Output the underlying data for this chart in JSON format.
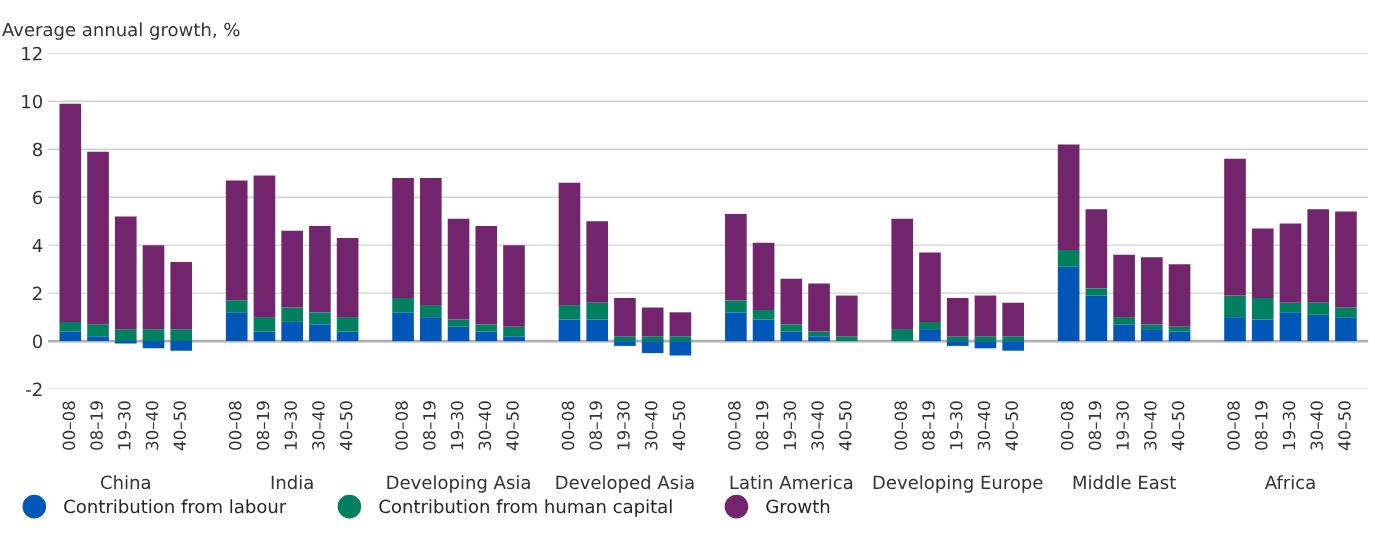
{
  "chart_data": {
    "type": "bar",
    "stacked": true,
    "ylabel": "Average annual growth, %",
    "categories": [
      "00–08",
      "08–19",
      "19–30",
      "30–40",
      "40–50",
      null,
      "00–08",
      "08–19",
      "19–30",
      "30–40",
      "40–50",
      null,
      "00–08",
      "08–19",
      "19–30",
      "30–40",
      "40–50",
      null,
      "00–08",
      "08–19",
      "19–30",
      "30–40",
      "40–50",
      null,
      "00–08",
      "08–19",
      "19–30",
      "30–40",
      "40–50",
      null,
      "00–08",
      "08–19",
      "19–30",
      "30–40",
      "40–50",
      null,
      "00–08",
      "08–19",
      "19–30",
      "30–40",
      "40–50",
      null,
      "00–08",
      "08–19",
      "19–30",
      "30–40",
      "40–50"
    ],
    "series": [
      {
        "name": "Contribution from labour",
        "color": "#0057b8",
        "values": [
          0.4,
          0.2,
          -0.1,
          -0.3,
          -0.4,
          null,
          1.2,
          0.4,
          0.8,
          0.7,
          0.4,
          null,
          1.2,
          1.0,
          0.6,
          0.4,
          0.2,
          null,
          0.9,
          0.9,
          -0.2,
          -0.5,
          -0.6,
          null,
          1.2,
          0.9,
          0.4,
          0.2,
          0.0,
          null,
          0.0,
          0.5,
          -0.2,
          -0.3,
          -0.4,
          null,
          3.1,
          1.9,
          0.7,
          0.5,
          0.4,
          null,
          1.0,
          0.9,
          1.2,
          1.1,
          1.0
        ]
      },
      {
        "name": "Contribution from human capital",
        "color": "#00805f",
        "values": [
          0.4,
          0.5,
          0.5,
          0.5,
          0.5,
          null,
          0.5,
          0.6,
          0.6,
          0.5,
          0.6,
          null,
          0.6,
          0.5,
          0.3,
          0.3,
          0.4,
          null,
          0.6,
          0.7,
          0.2,
          0.2,
          0.2,
          null,
          0.5,
          0.4,
          0.3,
          0.2,
          0.2,
          null,
          0.5,
          0.3,
          0.2,
          0.2,
          0.2,
          null,
          0.7,
          0.3,
          0.3,
          0.2,
          0.2,
          null,
          0.9,
          0.9,
          0.4,
          0.5,
          0.4
        ]
      },
      {
        "name": "Growth",
        "color": "#72246c",
        "values": [
          9.1,
          7.2,
          4.7,
          3.5,
          2.8,
          null,
          5.0,
          5.9,
          3.2,
          3.6,
          3.3,
          null,
          5.0,
          5.3,
          4.2,
          4.1,
          3.4,
          null,
          5.1,
          3.4,
          1.6,
          1.2,
          1.0,
          null,
          3.6,
          2.8,
          1.9,
          2.0,
          1.7,
          null,
          4.6,
          2.9,
          1.6,
          1.7,
          1.4,
          null,
          4.4,
          3.3,
          2.6,
          2.8,
          2.6,
          null,
          5.7,
          2.9,
          3.3,
          3.9,
          4.0
        ]
      }
    ],
    "annotations": [
      "China",
      "India",
      "Developing Asia",
      "Developed Asia",
      "Latin America",
      "Developing Europe",
      "Middle East",
      "Africa"
    ],
    "ylim": [
      -2,
      12
    ],
    "yticks": [
      -2,
      0,
      2,
      4,
      6,
      8,
      10,
      12
    ],
    "grid": "y",
    "legend": "bottom left"
  }
}
